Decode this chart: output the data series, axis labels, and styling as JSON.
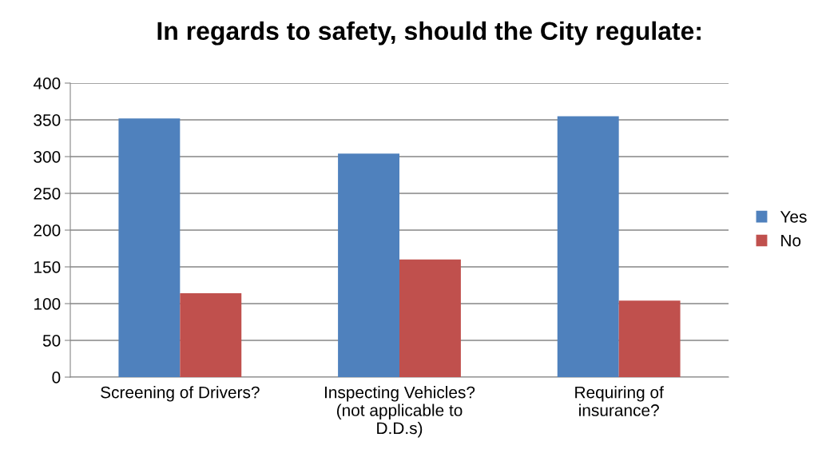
{
  "chart_data": {
    "type": "bar",
    "title": "In regards to safety, should the City regulate:",
    "categories": [
      "Screening of Drivers?",
      "Inspecting Vehicles?\n(not applicable to\nD.D.s)",
      "Requiring of\ninsurance?"
    ],
    "series": [
      {
        "name": "Yes",
        "color": "#4f81bd",
        "values": [
          352,
          304,
          355
        ]
      },
      {
        "name": "No",
        "color": "#c0504d",
        "values": [
          114,
          160,
          104
        ]
      }
    ],
    "ylim": [
      0,
      400
    ],
    "yticks": [
      0,
      50,
      100,
      150,
      200,
      250,
      300,
      350,
      400
    ],
    "grid": "y",
    "legend": "right"
  }
}
